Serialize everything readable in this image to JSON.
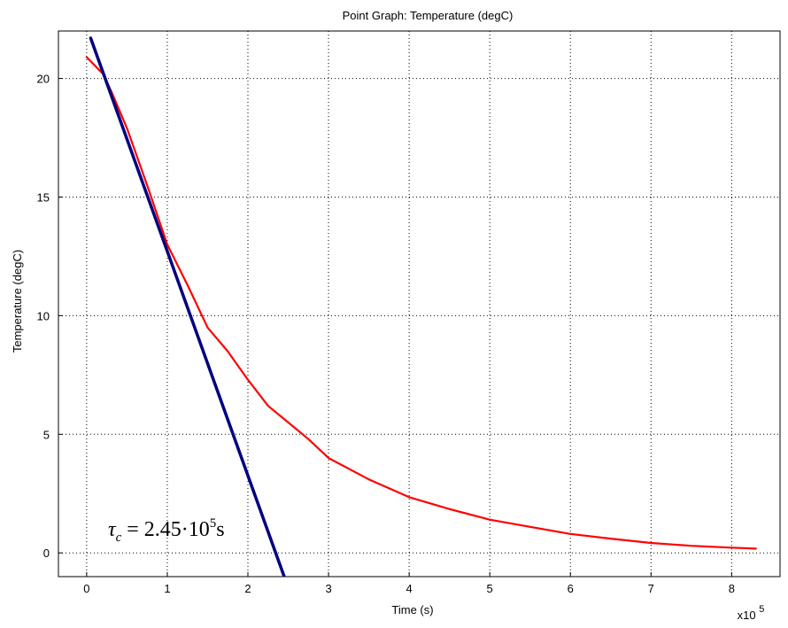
{
  "chart_data": {
    "type": "line",
    "title": "Point Graph: Temperature (degC)",
    "xlabel": "Time (s)",
    "ylabel": "Temperature (degC)",
    "x_multiplier_label": "x10",
    "x_multiplier_exp": "5",
    "xlim": [
      -0.35,
      8.6
    ],
    "ylim": [
      -1,
      22
    ],
    "x_ticks": [
      0,
      1,
      2,
      3,
      4,
      5,
      6,
      7,
      8
    ],
    "y_ticks": [
      0,
      5,
      10,
      15,
      20
    ],
    "grid": true,
    "colors": {
      "temperature": "#ff0000",
      "tangent": "#000080",
      "grid": "#000000",
      "axes": "#000000"
    },
    "series": [
      {
        "key": "temperature",
        "x": [
          0,
          0.2,
          0.3,
          0.5,
          0.75,
          1.0,
          1.25,
          1.5,
          1.75,
          2.0,
          2.25,
          2.5,
          2.75,
          3.0,
          3.5,
          4.0,
          4.5,
          5.0,
          5.5,
          6.0,
          6.5,
          7.0,
          7.5,
          8.0,
          8.3
        ],
        "y": [
          20.9,
          20.2,
          19.5,
          17.9,
          15.5,
          13.0,
          11.3,
          9.5,
          8.5,
          7.3,
          6.2,
          5.5,
          4.8,
          4.0,
          3.1,
          2.35,
          1.85,
          1.4,
          1.1,
          0.8,
          0.6,
          0.42,
          0.3,
          0.22,
          0.18
        ]
      },
      {
        "key": "tangent",
        "x": [
          0.05,
          2.45
        ],
        "y": [
          21.7,
          -1.0
        ]
      }
    ],
    "annotation": {
      "tau_symbol": "τ",
      "tau_subscript": "c",
      "value_text": " = 2.45·10",
      "exponent": "5",
      "unit": "s"
    }
  }
}
